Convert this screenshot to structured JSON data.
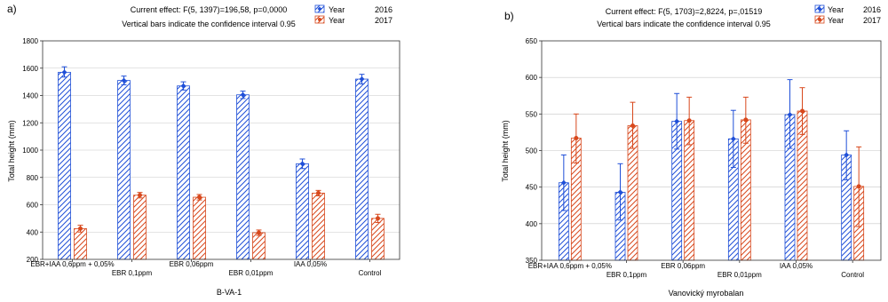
{
  "colors": {
    "series_2016": "#1f4fd8",
    "series_2017": "#d8481c",
    "axis": "#333333",
    "grid": "#c8c8c8"
  },
  "chart_data": [
    {
      "panel_label": "a)",
      "type": "bar",
      "title_lines": [
        "Current effect: F(5, 1397)=196,58, p=0,0000",
        "Vertical bars indicate the confidence interval 0.95"
      ],
      "xlabel": "B-VA-1",
      "ylabel": "Total height (mm)",
      "ylim": [
        200,
        1800
      ],
      "yticks": [
        200,
        400,
        600,
        800,
        1000,
        1200,
        1400,
        1600,
        1800
      ],
      "grid": "horizontal",
      "legend_position": "top-right",
      "categories": [
        "EBR+IAA 0,6ppm + 0,05%",
        "EBR 0,1ppm",
        "EBR 0,06ppm",
        "EBR 0,01ppm",
        "IAA 0,05%",
        "Control"
      ],
      "series": [
        {
          "legend_word": "Year",
          "name": "2016",
          "marker": "diamond",
          "values": [
            1570,
            1510,
            1470,
            1405,
            900,
            1520
          ],
          "ci_low": [
            1535,
            1478,
            1440,
            1378,
            865,
            1485
          ],
          "ci_high": [
            1610,
            1542,
            1500,
            1432,
            935,
            1555
          ]
        },
        {
          "legend_word": "Year",
          "name": "2017",
          "marker": "circle",
          "values": [
            425,
            670,
            655,
            395,
            685,
            500
          ],
          "ci_low": [
            400,
            650,
            635,
            375,
            665,
            470
          ],
          "ci_high": [
            450,
            690,
            675,
            415,
            705,
            530
          ]
        }
      ]
    },
    {
      "panel_label": "b)",
      "type": "bar",
      "title_lines": [
        "Current effect: F(5, 1703)=2,8224, p=,01519",
        "Vertical bars indicate the confidence interval 0.95"
      ],
      "xlabel": "Vanovický myrobalan",
      "ylabel": "Total height (mm)",
      "ylim": [
        350,
        650
      ],
      "yticks": [
        350,
        400,
        450,
        500,
        550,
        600,
        650
      ],
      "grid": "horizontal",
      "legend_position": "top-right",
      "categories": [
        "EBR+IAA 0,6ppm + 0,05%",
        "EBR 0,1ppm",
        "EBR 0,06ppm",
        "EBR 0,01ppm",
        "IAA 0,05%",
        "Control"
      ],
      "series": [
        {
          "legend_word": "Year",
          "name": "2016",
          "marker": "diamond",
          "values": [
            456,
            443,
            540,
            516,
            549,
            494
          ],
          "ci_low": [
            418,
            405,
            502,
            477,
            503,
            460
          ],
          "ci_high": [
            494,
            482,
            578,
            555,
            597,
            527
          ]
        },
        {
          "legend_word": "Year",
          "name": "2017",
          "marker": "circle",
          "values": [
            517,
            534,
            541,
            542,
            554,
            451
          ],
          "ci_low": [
            483,
            503,
            508,
            510,
            522,
            396
          ],
          "ci_high": [
            550,
            566,
            573,
            573,
            586,
            505
          ]
        }
      ]
    }
  ]
}
